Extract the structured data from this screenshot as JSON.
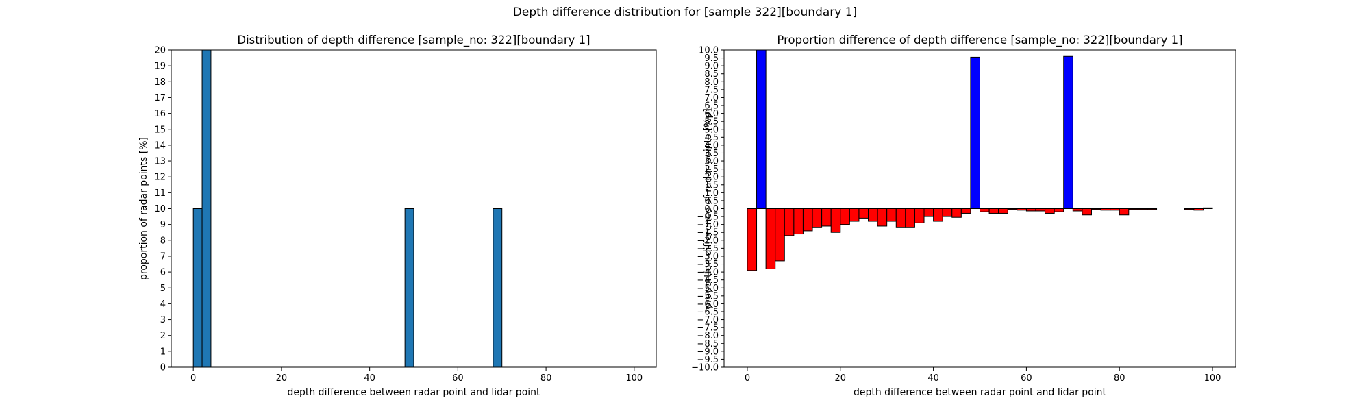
{
  "figure": {
    "suptitle": "Depth difference distribution for [sample 322][boundary 1]"
  },
  "chart_data": [
    {
      "type": "bar",
      "title": "Distribution of depth difference [sample_no: 322][boundary 1]",
      "xlabel": "depth difference between radar point and lidar point",
      "ylabel": "proportion of radar points [%]",
      "xlim": [
        -5,
        105
      ],
      "ylim": [
        0,
        20
      ],
      "xticks": [
        0,
        20,
        40,
        60,
        80,
        100
      ],
      "yticks": [
        0,
        1,
        2,
        3,
        4,
        5,
        6,
        7,
        8,
        9,
        10,
        11,
        12,
        13,
        14,
        15,
        16,
        17,
        18,
        19,
        20
      ],
      "bin_width": 2,
      "bar_color": "#1f77b4",
      "edge_color": "#000000",
      "bins": [
        0,
        2,
        48,
        68
      ],
      "values": [
        10,
        20,
        10,
        10
      ]
    },
    {
      "type": "bar",
      "title": "Proportion difference of depth difference [sample_no: 322][boundary 1]",
      "xlabel": "depth difference between radar point and lidar point",
      "ylabel": "proportion difference of radar points [%p]",
      "xlim": [
        -5,
        105
      ],
      "ylim": [
        -10,
        10
      ],
      "xticks": [
        0,
        20,
        40,
        60,
        80,
        100
      ],
      "yticks": [
        -10.0,
        -9.5,
        -9.0,
        -8.5,
        -8.0,
        -7.5,
        -7.0,
        -6.5,
        -6.0,
        -5.5,
        -5.0,
        -4.5,
        -4.0,
        -3.5,
        -3.0,
        -2.5,
        -2.0,
        -1.5,
        -1.0,
        -0.5,
        0.0,
        0.5,
        1.0,
        1.5,
        2.0,
        2.5,
        3.0,
        3.5,
        4.0,
        4.5,
        5.0,
        5.5,
        6.0,
        6.5,
        7.0,
        7.5,
        8.0,
        8.5,
        9.0,
        9.5,
        10.0
      ],
      "bin_width": 2,
      "positive_color": "#0000ff",
      "negative_color": "#ff0000",
      "edge_color": "#000000",
      "bins": [
        0,
        2,
        4,
        6,
        8,
        10,
        12,
        14,
        16,
        18,
        20,
        22,
        24,
        26,
        28,
        30,
        32,
        34,
        36,
        38,
        40,
        42,
        44,
        46,
        48,
        50,
        52,
        54,
        56,
        58,
        60,
        62,
        64,
        66,
        68,
        70,
        72,
        74,
        76,
        78,
        80,
        82,
        84,
        86,
        88,
        90,
        92,
        94,
        96,
        98
      ],
      "values": [
        -3.9,
        10.0,
        -3.8,
        -3.3,
        -1.7,
        -1.6,
        -1.4,
        -1.2,
        -1.1,
        -1.5,
        -1.0,
        -0.8,
        -0.6,
        -0.8,
        -1.1,
        -0.8,
        -1.2,
        -1.2,
        -0.9,
        -0.5,
        -0.8,
        -0.5,
        -0.55,
        -0.3,
        9.55,
        -0.2,
        -0.3,
        -0.3,
        -0.05,
        -0.1,
        -0.15,
        -0.15,
        -0.3,
        -0.2,
        9.6,
        -0.15,
        -0.4,
        -0.05,
        -0.1,
        -0.1,
        -0.4,
        -0.05,
        -0.05,
        -0.05,
        0.0,
        0.0,
        0.0,
        -0.05,
        -0.1,
        0.05
      ]
    }
  ]
}
